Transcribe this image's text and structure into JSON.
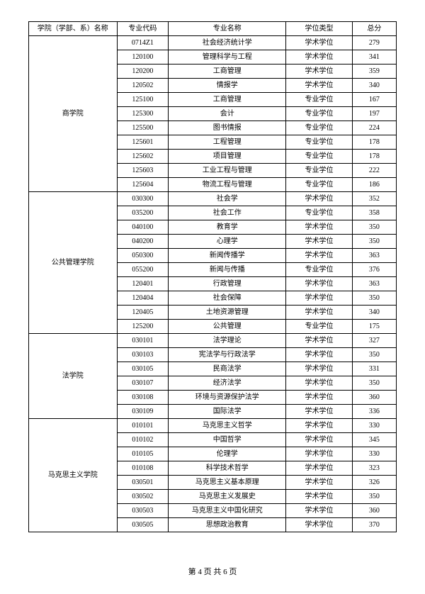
{
  "headers": {
    "dept": "学院（学部、系）名称",
    "code": "专业代码",
    "name": "专业名称",
    "type": "学位类型",
    "score": "总分"
  },
  "groups": [
    {
      "dept": "商学院",
      "rows": [
        {
          "code": "0714Z1",
          "name": "社会经济统计学",
          "type": "学术学位",
          "score": "279"
        },
        {
          "code": "120100",
          "name": "管理科学与工程",
          "type": "学术学位",
          "score": "341"
        },
        {
          "code": "120200",
          "name": "工商管理",
          "type": "学术学位",
          "score": "359"
        },
        {
          "code": "120502",
          "name": "情报学",
          "type": "学术学位",
          "score": "340"
        },
        {
          "code": "125100",
          "name": "工商管理",
          "type": "专业学位",
          "score": "167"
        },
        {
          "code": "125300",
          "name": "会计",
          "type": "专业学位",
          "score": "197"
        },
        {
          "code": "125500",
          "name": "图书情报",
          "type": "专业学位",
          "score": "224"
        },
        {
          "code": "125601",
          "name": "工程管理",
          "type": "专业学位",
          "score": "178"
        },
        {
          "code": "125602",
          "name": "项目管理",
          "type": "专业学位",
          "score": "178"
        },
        {
          "code": "125603",
          "name": "工业工程与管理",
          "type": "专业学位",
          "score": "222"
        },
        {
          "code": "125604",
          "name": "物流工程与管理",
          "type": "专业学位",
          "score": "186"
        }
      ]
    },
    {
      "dept": "公共管理学院",
      "rows": [
        {
          "code": "030300",
          "name": "社会学",
          "type": "学术学位",
          "score": "352"
        },
        {
          "code": "035200",
          "name": "社会工作",
          "type": "专业学位",
          "score": "358"
        },
        {
          "code": "040100",
          "name": "教育学",
          "type": "学术学位",
          "score": "350"
        },
        {
          "code": "040200",
          "name": "心理学",
          "type": "学术学位",
          "score": "350"
        },
        {
          "code": "050300",
          "name": "新闻传播学",
          "type": "学术学位",
          "score": "363"
        },
        {
          "code": "055200",
          "name": "新闻与传播",
          "type": "专业学位",
          "score": "376"
        },
        {
          "code": "120401",
          "name": "行政管理",
          "type": "学术学位",
          "score": "363"
        },
        {
          "code": "120404",
          "name": "社会保障",
          "type": "学术学位",
          "score": "350"
        },
        {
          "code": "120405",
          "name": "土地资源管理",
          "type": "学术学位",
          "score": "340"
        },
        {
          "code": "125200",
          "name": "公共管理",
          "type": "专业学位",
          "score": "175"
        }
      ]
    },
    {
      "dept": "法学院",
      "rows": [
        {
          "code": "030101",
          "name": "法学理论",
          "type": "学术学位",
          "score": "327"
        },
        {
          "code": "030103",
          "name": "宪法学与行政法学",
          "type": "学术学位",
          "score": "350"
        },
        {
          "code": "030105",
          "name": "民商法学",
          "type": "学术学位",
          "score": "331"
        },
        {
          "code": "030107",
          "name": "经济法学",
          "type": "学术学位",
          "score": "350"
        },
        {
          "code": "030108",
          "name": "环境与资源保护法学",
          "type": "学术学位",
          "score": "360"
        },
        {
          "code": "030109",
          "name": "国际法学",
          "type": "学术学位",
          "score": "336"
        }
      ]
    },
    {
      "dept": "马克思主义学院",
      "rows": [
        {
          "code": "010101",
          "name": "马克思主义哲学",
          "type": "学术学位",
          "score": "330"
        },
        {
          "code": "010102",
          "name": "中国哲学",
          "type": "学术学位",
          "score": "345"
        },
        {
          "code": "010105",
          "name": "伦理学",
          "type": "学术学位",
          "score": "330"
        },
        {
          "code": "010108",
          "name": "科学技术哲学",
          "type": "学术学位",
          "score": "323"
        },
        {
          "code": "030501",
          "name": "马克思主义基本原理",
          "type": "学术学位",
          "score": "326"
        },
        {
          "code": "030502",
          "name": "马克思主义发展史",
          "type": "学术学位",
          "score": "350"
        },
        {
          "code": "030503",
          "name": "马克思主义中国化研究",
          "type": "学术学位",
          "score": "360"
        },
        {
          "code": "030505",
          "name": "思想政治教育",
          "type": "学术学位",
          "score": "370"
        }
      ]
    }
  ],
  "footer": "第 4 页 共 6 页"
}
